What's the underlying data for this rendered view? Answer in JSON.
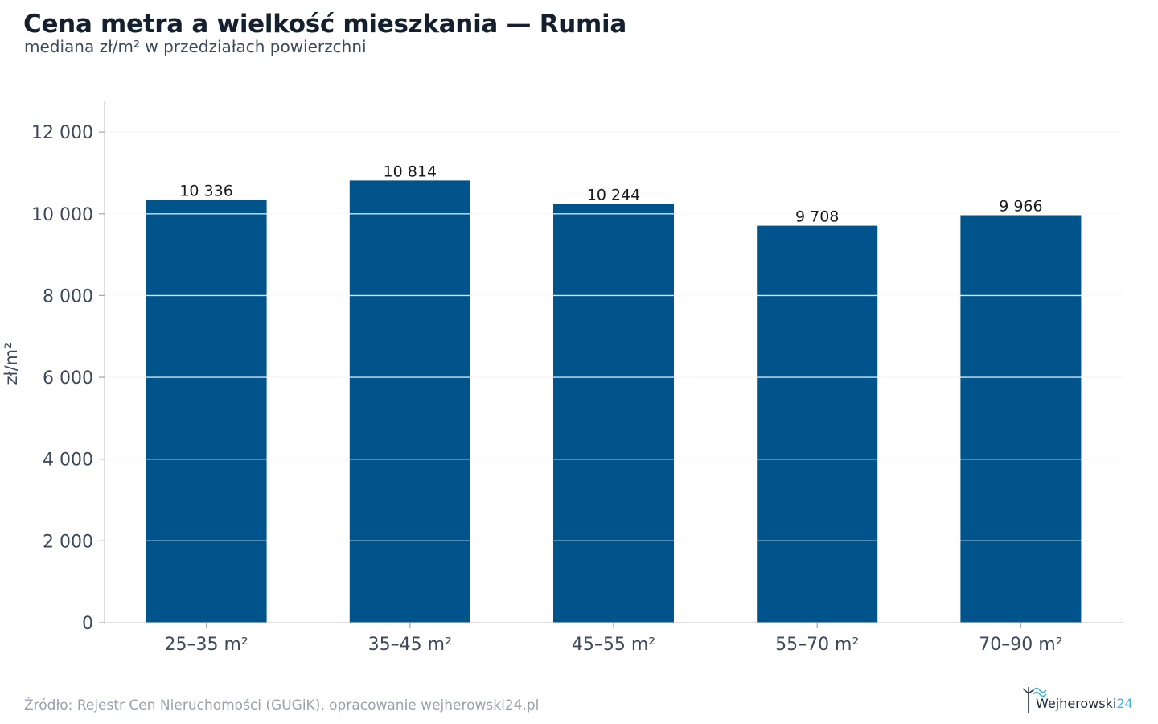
{
  "title": "Cena metra a wielkość mieszkania — Rumia",
  "subtitle": "mediana zł/m² w przedziałach powierzchni",
  "source": "Źródło: Rejestr Cen Nieruchomości (GUGiK), opracowanie wejherowski24.pl",
  "logo": {
    "main": "Wejherowski",
    "num": "24"
  },
  "colors": {
    "bar": "#00548c",
    "grid": "#e6e6e6",
    "axis": "#cccccc",
    "text": "#3e4a59"
  },
  "chart_data": {
    "type": "bar",
    "title": "Cena metra a wielkość mieszkania — Rumia",
    "subtitle": "mediana zł/m² w przedziałach powierzchni",
    "xlabel": "",
    "ylabel": "zł/m²",
    "categories": [
      "25–35 m²",
      "35–45 m²",
      "45–55 m²",
      "55–70 m²",
      "70–90 m²"
    ],
    "values": [
      10336,
      10814,
      10244,
      9708,
      9966
    ],
    "value_labels": [
      "10 336",
      "10 814",
      "10 244",
      "9 708",
      "9 966"
    ],
    "yticks": [
      0,
      2000,
      4000,
      6000,
      8000,
      10000,
      12000
    ],
    "ytick_labels": [
      "0",
      "2 000",
      "4 000",
      "6 000",
      "8 000",
      "10 000",
      "12 000"
    ],
    "ylim": [
      0,
      12000
    ],
    "grid": true,
    "legend": "none"
  }
}
